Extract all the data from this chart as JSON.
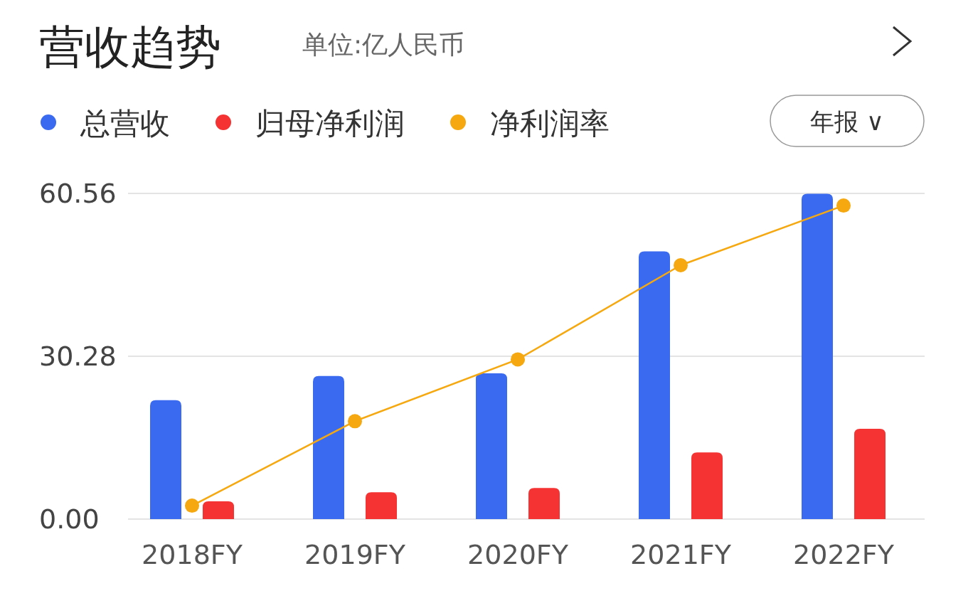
{
  "chart_data": {
    "type": "bar",
    "title": "营收趋势",
    "subtitle": "单位:亿人民币",
    "categories": [
      "2018FY",
      "2019FY",
      "2020FY",
      "2021FY",
      "2022FY"
    ],
    "series": [
      {
        "name": "总营收",
        "color": "#3a6af0",
        "values": [
          22.1,
          26.6,
          27.1,
          49.8,
          60.5
        ]
      },
      {
        "name": "归母净利润",
        "color": "#f53333",
        "values": [
          3.3,
          5.0,
          5.8,
          12.4,
          16.8
        ]
      },
      {
        "name": "净利润率",
        "type": "line",
        "color": "#f5a80f",
        "values": [
          2.5,
          18.2,
          29.7,
          47.2,
          58.3
        ]
      }
    ],
    "ylim": [
      0,
      60.56
    ],
    "yticks": [
      {
        "value": 0,
        "label": "0.00"
      },
      {
        "value": 30.28,
        "label": "30.28"
      },
      {
        "value": 60.56,
        "label": "60.56"
      }
    ],
    "grid": "y",
    "legend": "top left",
    "marker": "circle",
    "annotations": [
      "年报 ∨"
    ]
  }
}
